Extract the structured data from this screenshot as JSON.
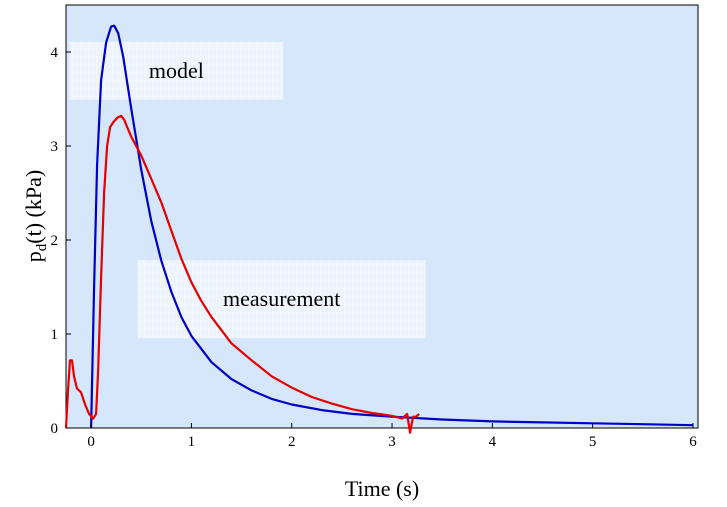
{
  "chart_data": {
    "type": "line",
    "title": "",
    "xlabel": "Time (s)",
    "ylabel_main": "p",
    "ylabel_sub": "d",
    "ylabel_rest": "(t)  (kPa)",
    "xlim": [
      -0.25,
      6.05
    ],
    "ylim": [
      0,
      4.5
    ],
    "xticks": [
      "0",
      "1",
      "2",
      "3",
      "4",
      "5",
      "6"
    ],
    "yticks": [
      "0",
      "1",
      "2",
      "3",
      "4"
    ],
    "grid": false,
    "plot_background": "#d6e6fb",
    "annotations": [
      {
        "text": "model",
        "x": 0.85,
        "y": 3.8
      },
      {
        "text": "measurement",
        "x": 1.9,
        "y": 1.37
      }
    ],
    "series": [
      {
        "color": "#0000cc",
        "x": [
          0.0,
          0.03,
          0.06,
          0.1,
          0.15,
          0.2,
          0.23,
          0.27,
          0.32,
          0.4,
          0.5,
          0.6,
          0.7,
          0.8,
          0.9,
          1.0,
          1.2,
          1.4,
          1.6,
          1.8,
          2.0,
          2.3,
          2.6,
          3.0,
          3.5,
          4.0,
          4.5,
          5.0,
          5.5,
          6.0
        ],
        "y": [
          0.0,
          1.5,
          2.8,
          3.7,
          4.1,
          4.27,
          4.28,
          4.2,
          3.95,
          3.4,
          2.75,
          2.2,
          1.78,
          1.45,
          1.18,
          0.98,
          0.7,
          0.52,
          0.4,
          0.31,
          0.25,
          0.19,
          0.15,
          0.12,
          0.09,
          0.07,
          0.06,
          0.05,
          0.04,
          0.03
        ]
      },
      {
        "color": "#e60000",
        "x": [
          -0.25,
          -0.23,
          -0.21,
          -0.19,
          -0.17,
          -0.14,
          -0.1,
          -0.06,
          -0.02,
          0.02,
          0.05,
          0.07,
          0.1,
          0.13,
          0.16,
          0.19,
          0.22,
          0.26,
          0.3,
          0.33,
          0.36,
          0.4,
          0.45,
          0.5,
          0.6,
          0.7,
          0.8,
          0.9,
          1.0,
          1.1,
          1.2,
          1.4,
          1.6,
          1.8,
          2.0,
          2.2,
          2.4,
          2.6,
          2.8,
          3.0,
          3.1,
          3.15,
          3.18,
          3.21,
          3.24,
          3.27
        ],
        "y": [
          0.0,
          0.4,
          0.72,
          0.72,
          0.55,
          0.42,
          0.38,
          0.25,
          0.15,
          0.1,
          0.15,
          0.6,
          1.6,
          2.5,
          3.0,
          3.2,
          3.25,
          3.3,
          3.32,
          3.28,
          3.2,
          3.1,
          3.0,
          2.9,
          2.65,
          2.4,
          2.1,
          1.8,
          1.55,
          1.35,
          1.18,
          0.9,
          0.72,
          0.55,
          0.43,
          0.33,
          0.26,
          0.2,
          0.16,
          0.13,
          0.1,
          0.15,
          -0.05,
          0.12,
          0.12,
          0.15
        ]
      }
    ]
  }
}
